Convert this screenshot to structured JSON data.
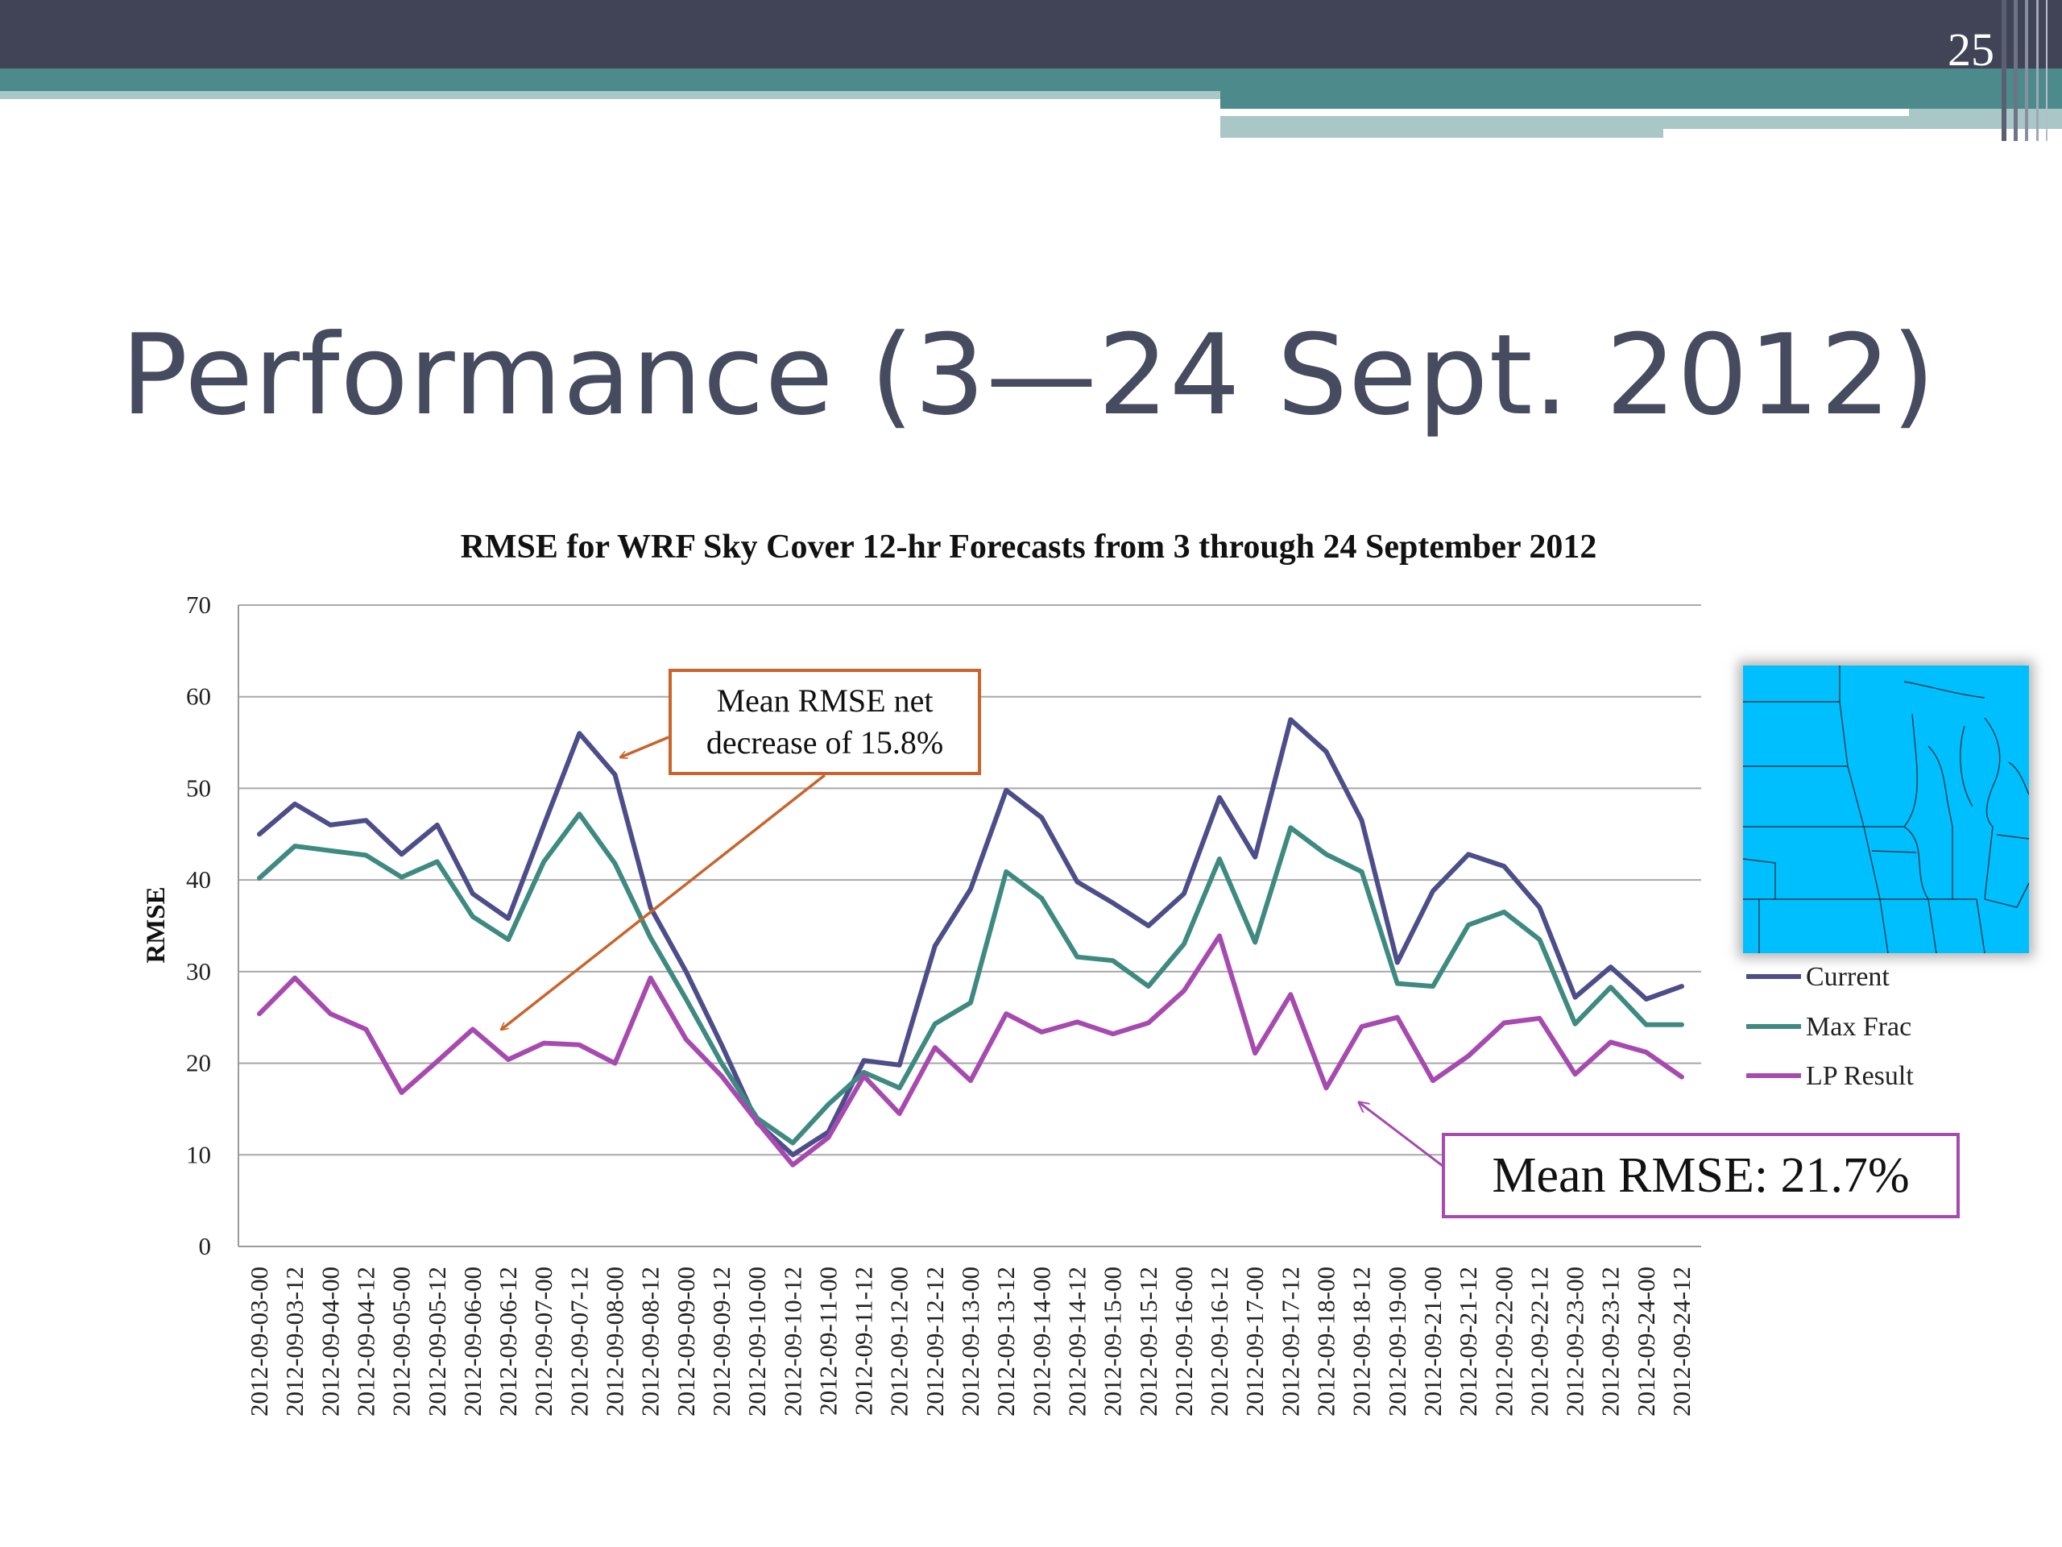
{
  "slide": {
    "number": "25",
    "title": "Performance (3—24 Sept. 2012)"
  },
  "colors": {
    "header_dark": "#414456",
    "header_teal": "#4d8a8c",
    "header_light": "#a9c7c7",
    "current": "#4d4d8a",
    "max_frac": "#3e8a80",
    "lp_result": "#a64ab0",
    "arrow_orange": "#c8642c",
    "map_water": "#00bfff"
  },
  "chart_data": {
    "type": "line",
    "title": "RMSE for WRF Sky Cover 12-hr Forecasts from 3 through 24 September 2012",
    "xlabel": "",
    "ylabel": "RMSE",
    "ylim": [
      0,
      70
    ],
    "yticks": [
      0,
      10,
      20,
      30,
      40,
      50,
      60,
      70
    ],
    "grid": true,
    "legend_position": "right",
    "categories": [
      "2012-09-03-00",
      "2012-09-03-12",
      "2012-09-04-00",
      "2012-09-04-12",
      "2012-09-05-00",
      "2012-09-05-12",
      "2012-09-06-00",
      "2012-09-06-12",
      "2012-09-07-00",
      "2012-09-07-12",
      "2012-09-08-00",
      "2012-09-08-12",
      "2012-09-09-00",
      "2012-09-09-12",
      "2012-09-10-00",
      "2012-09-10-12",
      "2012-09-11-00",
      "2012-09-11-12",
      "2012-09-12-00",
      "2012-09-12-12",
      "2012-09-13-00",
      "2012-09-13-12",
      "2012-09-14-00",
      "2012-09-14-12",
      "2012-09-15-00",
      "2012-09-15-12",
      "2012-09-16-00",
      "2012-09-16-12",
      "2012-09-17-00",
      "2012-09-17-12",
      "2012-09-18-00",
      "2012-09-18-12",
      "2012-09-19-00",
      "2012-09-21-00",
      "2012-09-21-12",
      "2012-09-22-00",
      "2012-09-22-12",
      "2012-09-23-00",
      "2012-09-23-12",
      "2012-09-24-00",
      "2012-09-24-12"
    ],
    "series": [
      {
        "name": "Current",
        "values": [
          45,
          48.3,
          46,
          46.5,
          42.8,
          46,
          38.5,
          35.8,
          46,
          56,
          51.5,
          37,
          30,
          22,
          13.5,
          10,
          12.5,
          20.3,
          19.8,
          32.8,
          39,
          49.8,
          46.8,
          39.8,
          37.5,
          35,
          38.5,
          49,
          42.5,
          57.5,
          54,
          46.5,
          31,
          38.8,
          42.8,
          41.5,
          37,
          27.2,
          30.5,
          27,
          28.4
        ]
      },
      {
        "name": "Max Frac",
        "values": [
          40.2,
          43.7,
          43.2,
          42.7,
          40.3,
          42,
          36,
          33.5,
          42,
          47.2,
          41.8,
          33.7,
          27,
          20,
          14,
          11.3,
          15.5,
          19,
          17.3,
          24.3,
          26.6,
          40.9,
          38,
          31.6,
          31.2,
          28.4,
          33,
          42.3,
          33.2,
          45.7,
          42.8,
          40.9,
          28.7,
          28.4,
          35.1,
          36.5,
          33.5,
          24.3,
          28.3,
          24.2,
          24.2
        ]
      },
      {
        "name": "LP Result",
        "values": [
          25.4,
          29.3,
          25.4,
          23.7,
          16.8,
          20.2,
          23.7,
          20.4,
          22.2,
          22,
          20,
          29.3,
          22.6,
          18.6,
          13.6,
          8.9,
          11.9,
          18.6,
          14.5,
          21.7,
          18.1,
          25.4,
          23.4,
          24.5,
          23.2,
          24.4,
          27.9,
          33.9,
          21.1,
          27.5,
          17.3,
          24,
          25,
          18.1,
          20.8,
          24.4,
          24.9,
          18.8,
          22.3,
          21.2,
          18.5
        ]
      }
    ],
    "annotations": [
      {
        "id": "decrease",
        "text_line1": "Mean RMSE net",
        "text_line2": "decrease of 15.8%"
      },
      {
        "id": "mean",
        "text": "Mean RMSE:  21.7%"
      }
    ]
  }
}
